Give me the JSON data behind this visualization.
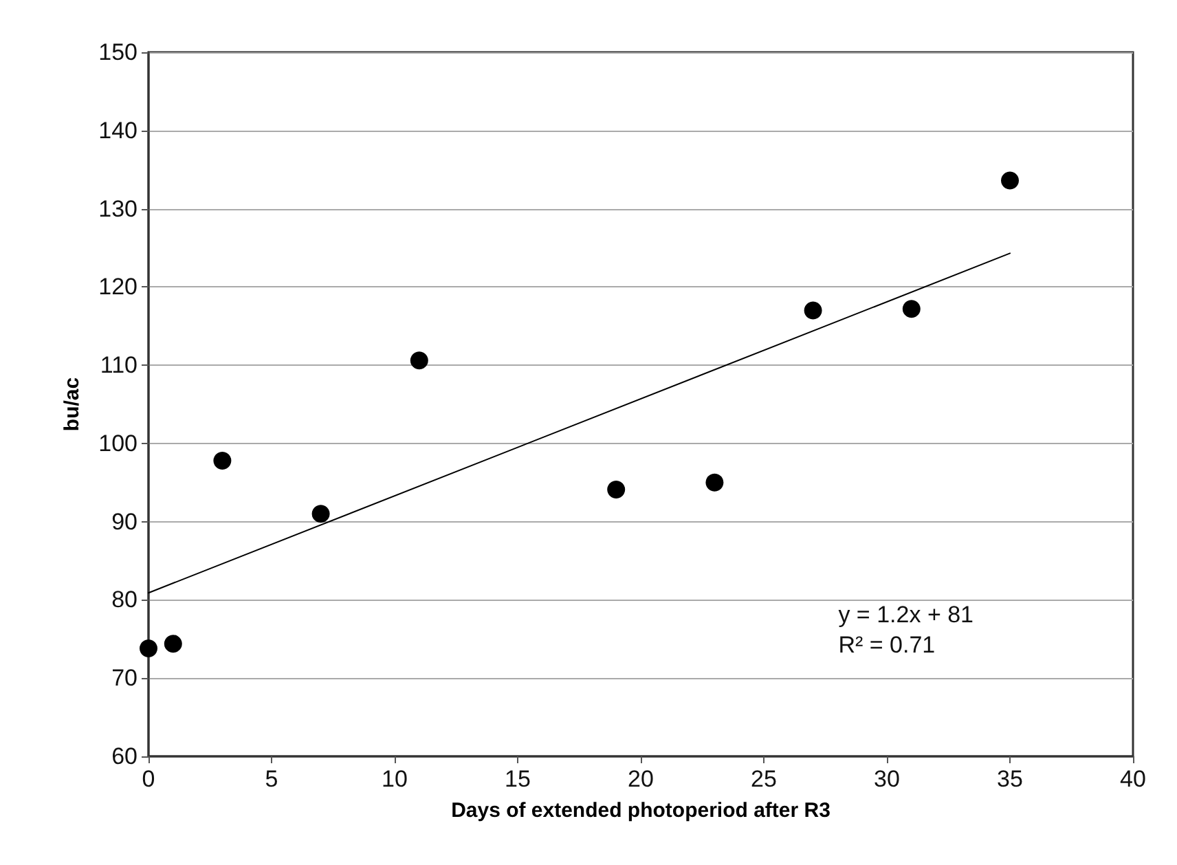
{
  "chart_data": {
    "type": "scatter",
    "xlabel": "Days of extended photoperiod after R3",
    "ylabel": "bu/ac",
    "xlim": [
      0,
      40
    ],
    "xticks": [
      0,
      5,
      10,
      15,
      20,
      25,
      30,
      35,
      40
    ],
    "ylim": [
      60,
      150
    ],
    "yticks": [
      60,
      70,
      80,
      90,
      100,
      110,
      120,
      130,
      140,
      150
    ],
    "grid": "y",
    "marker": "circle",
    "annotations": [
      "y = 1.2x + 81\nR² = 0.71"
    ],
    "series": [
      {
        "color": "#000000",
        "x": [
          0,
          1,
          3,
          7,
          11,
          19,
          23,
          27,
          31,
          35
        ],
        "values": [
          73.8,
          74.4,
          97.8,
          91,
          110.6,
          94.1,
          95,
          117,
          117.2,
          133.6
        ]
      },
      {
        "type": "line",
        "color": "#000000",
        "line_style": "solid",
        "marker": "none",
        "x": [
          0,
          35
        ],
        "values": [
          80.9,
          124.3
        ]
      }
    ]
  }
}
